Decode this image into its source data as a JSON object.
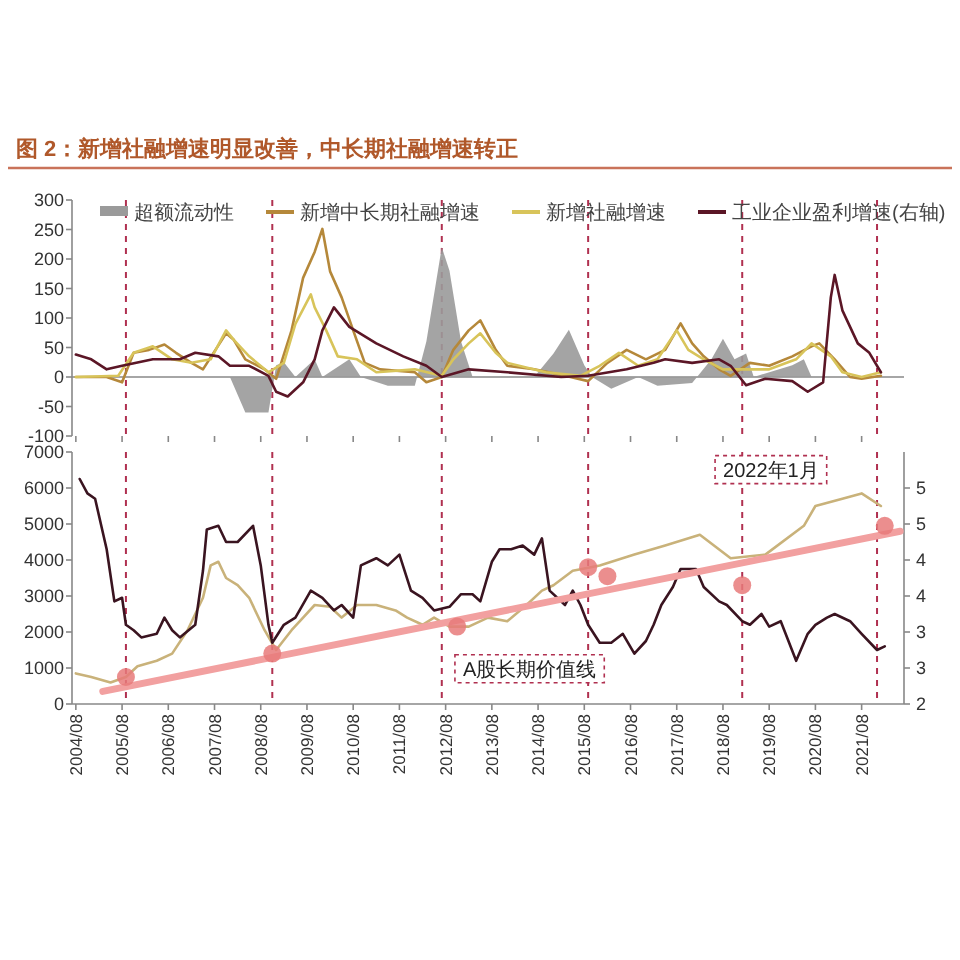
{
  "chart_data": [
    {
      "type": "line",
      "title": "图 2：新增社融增速明显改善，中长期社融增速转正",
      "xlim": [
        "2004-07",
        "2022-07"
      ],
      "xticks": [
        {
          "value": "2004-08",
          "label": null
        },
        {
          "value": "2005-08",
          "label": null
        },
        {
          "value": "2006-08",
          "label": null
        },
        {
          "value": "2007-08",
          "label": null
        },
        {
          "value": "2008-08",
          "label": null
        },
        {
          "value": "2009-08",
          "label": null
        },
        {
          "value": "2010-08",
          "label": null
        },
        {
          "value": "2011-08",
          "label": null
        },
        {
          "value": "2012-08",
          "label": null
        },
        {
          "value": "2013-08",
          "label": null
        },
        {
          "value": "2014-08",
          "label": null
        },
        {
          "value": "2015-08",
          "label": null
        },
        {
          "value": "2016-08",
          "label": null
        },
        {
          "value": "2017-08",
          "label": null
        },
        {
          "value": "2018-08",
          "label": null
        },
        {
          "value": "2019-08",
          "label": null
        },
        {
          "value": "2020-08",
          "label": null
        },
        {
          "value": "2021-08",
          "label": null
        }
      ],
      "ylim": [
        -100,
        300
      ],
      "yticks": [
        -100,
        -50,
        0,
        50,
        100,
        150,
        200,
        250,
        300
      ],
      "tick_labels": "y",
      "legend": "top",
      "ref_lines": [
        {
          "axis": "x",
          "value": "2005-09",
          "color": "#b03050",
          "line_style": "dashed"
        },
        {
          "axis": "x",
          "value": "2008-11",
          "color": "#b03050",
          "line_style": "dashed"
        },
        {
          "axis": "x",
          "value": "2012-07",
          "color": "#b03050",
          "line_style": "dashed"
        },
        {
          "axis": "x",
          "value": "2015-09",
          "color": "#b03050",
          "line_style": "dashed"
        },
        {
          "axis": "x",
          "value": "2019-01",
          "color": "#b03050",
          "line_style": "dashed"
        },
        {
          "axis": "x",
          "value": "2021-12",
          "color": "#b03050",
          "line_style": "dashed"
        }
      ],
      "series": [
        {
          "name": "超额流动性",
          "type": "area",
          "color": "#9a9a9a",
          "x": [
            "2004-08",
            "2007-12",
            "2008-04",
            "2008-10",
            "2008-12",
            "2009-02",
            "2009-05",
            "2009-10",
            "2009-12",
            "2010-07",
            "2010-10",
            "2011-05",
            "2011-12",
            "2012-03",
            "2012-06",
            "2012-07",
            "2012-09",
            "2012-12",
            "2013-03",
            "2014-07",
            "2014-12",
            "2015-04",
            "2015-08",
            "2015-10",
            "2016-03",
            "2016-10",
            "2017-03",
            "2017-12",
            "2018-05",
            "2018-08",
            "2018-11",
            "2019-02",
            "2019-04",
            "2020-02",
            "2020-05",
            "2020-07",
            "2022-01"
          ],
          "values": [
            0,
            0,
            -60,
            -60,
            20,
            25,
            0,
            30,
            0,
            30,
            0,
            -15,
            -15,
            60,
            180,
            220,
            180,
            60,
            0,
            0,
            40,
            80,
            20,
            0,
            -20,
            0,
            -15,
            -10,
            30,
            65,
            30,
            40,
            0,
            20,
            30,
            0,
            0
          ]
        },
        {
          "name": "新增中长期社融增速",
          "color": "#b5883a",
          "x": [
            "2004-08",
            "2005-04",
            "2005-08",
            "2005-11",
            "2006-03",
            "2006-07",
            "2006-10",
            "2007-02",
            "2007-05",
            "2007-11",
            "2008-01",
            "2008-04",
            "2008-09",
            "2008-12",
            "2009-04",
            "2009-07",
            "2009-10",
            "2009-12",
            "2010-02",
            "2010-05",
            "2010-08",
            "2010-11",
            "2011-03",
            "2011-12",
            "2012-03",
            "2012-07",
            "2012-10",
            "2013-02",
            "2013-05",
            "2013-09",
            "2013-12",
            "2014-07",
            "2015-03",
            "2015-09",
            "2016-02",
            "2016-07",
            "2016-12",
            "2017-05",
            "2017-09",
            "2017-12",
            "2018-03",
            "2018-07",
            "2018-10",
            "2019-03",
            "2019-08",
            "2020-02",
            "2020-07",
            "2020-09",
            "2021-01",
            "2021-05",
            "2021-08",
            "2022-01"
          ],
          "values": [
            0,
            0,
            -9,
            41,
            46,
            55,
            41,
            24,
            13,
            74,
            63,
            30,
            13,
            -3,
            79,
            168,
            212,
            251,
            179,
            135,
            79,
            24,
            13,
            8,
            -9,
            0,
            46,
            79,
            96,
            46,
            19,
            13,
            2,
            -7,
            24,
            46,
            30,
            46,
            91,
            57,
            35,
            13,
            2,
            24,
            19,
            35,
            52,
            57,
            30,
            0,
            -3,
            2
          ]
        },
        {
          "name": "新增社融增速",
          "color": "#d8c45a",
          "x": [
            "2004-08",
            "2005-07",
            "2005-11",
            "2006-04",
            "2006-09",
            "2007-02",
            "2007-07",
            "2007-11",
            "2008-01",
            "2008-05",
            "2008-10",
            "2009-02",
            "2009-05",
            "2009-09",
            "2009-10",
            "2010-01",
            "2010-04",
            "2010-09",
            "2011-02",
            "2011-12",
            "2012-07",
            "2012-10",
            "2013-02",
            "2013-05",
            "2013-09",
            "2013-12",
            "2014-10",
            "2015-07",
            "2015-12",
            "2016-05",
            "2016-10",
            "2017-03",
            "2017-08",
            "2017-11",
            "2018-03",
            "2018-08",
            "2019-03",
            "2019-08",
            "2020-03",
            "2020-07",
            "2020-12",
            "2021-03",
            "2021-08",
            "2022-01"
          ],
          "values": [
            0,
            2,
            41,
            52,
            30,
            24,
            30,
            79,
            63,
            35,
            8,
            24,
            90,
            140,
            118,
            79,
            35,
            30,
            8,
            13,
            2,
            30,
            57,
            74,
            41,
            24,
            8,
            2,
            19,
            41,
            19,
            30,
            79,
            46,
            30,
            13,
            13,
            13,
            30,
            57,
            35,
            8,
            0,
            8
          ]
        },
        {
          "name": "工业企业盈利增速(右轴)",
          "color": "#5b1626",
          "x": [
            "2004-08",
            "2004-12",
            "2005-04",
            "2005-08",
            "2006-04",
            "2006-11",
            "2007-03",
            "2007-09",
            "2007-12",
            "2008-05",
            "2008-10",
            "2008-12",
            "2009-03",
            "2009-07",
            "2009-10",
            "2009-12",
            "2010-03",
            "2010-07",
            "2011-02",
            "2011-09",
            "2012-03",
            "2012-07",
            "2013-02",
            "2013-12",
            "2015-02",
            "2015-09",
            "2016-07",
            "2017-02",
            "2017-05",
            "2017-12",
            "2018-07",
            "2018-10",
            "2019-02",
            "2019-07",
            "2020-02",
            "2020-06",
            "2020-10",
            "2020-12",
            "2021-01",
            "2021-03",
            "2021-07",
            "2021-10",
            "2022-01"
          ],
          "values": [
            38,
            30,
            13,
            19,
            30,
            30,
            41,
            35,
            19,
            19,
            2,
            -25,
            -33,
            -9,
            30,
            79,
            118,
            85,
            57,
            35,
            19,
            0,
            13,
            8,
            0,
            2,
            13,
            24,
            30,
            24,
            30,
            19,
            -14,
            -3,
            -7,
            -25,
            -9,
            135,
            173,
            113,
            57,
            41,
            8
          ]
        }
      ]
    },
    {
      "type": "line",
      "xlim": [
        "2004-07",
        "2022-07"
      ],
      "xticks": [
        {
          "value": "2004-08",
          "label": "2004/08"
        },
        {
          "value": "2005-08",
          "label": "2005/08"
        },
        {
          "value": "2006-08",
          "label": "2006/08"
        },
        {
          "value": "2007-08",
          "label": "2007/08"
        },
        {
          "value": "2008-08",
          "label": "2008/08"
        },
        {
          "value": "2009-08",
          "label": "2009/08"
        },
        {
          "value": "2010-08",
          "label": "2010/08"
        },
        {
          "value": "2011-08",
          "label": "2011/08"
        },
        {
          "value": "2012-08",
          "label": "2012/08"
        },
        {
          "value": "2013-08",
          "label": "2013/08"
        },
        {
          "value": "2014-08",
          "label": "2014/08"
        },
        {
          "value": "2015-08",
          "label": "2015/08"
        },
        {
          "value": "2016-08",
          "label": "2016/08"
        },
        {
          "value": "2017-08",
          "label": "2017/08"
        },
        {
          "value": "2018-08",
          "label": "2018/08"
        },
        {
          "value": "2019-08",
          "label": "2019/08"
        },
        {
          "value": "2020-08",
          "label": "2020/08"
        },
        {
          "value": "2021-08",
          "label": "2021/08"
        }
      ],
      "ylim": [
        0,
        7000
      ],
      "yticks": [
        0,
        1000,
        2000,
        3000,
        4000,
        5000,
        6000,
        7000
      ],
      "y2lim": [
        2,
        5.5
      ],
      "y2ticks": [
        2,
        {
          "value": 2.5,
          "label": "3"
        },
        3,
        {
          "value": 3.5,
          "label": "4"
        },
        4,
        {
          "value": 4.5,
          "label": "5"
        },
        5
      ],
      "annotations": [
        "A股长期价值线",
        "2022年1月"
      ],
      "ref_lines": [
        {
          "axis": "x",
          "value": "2005-09",
          "color": "#b03050",
          "line_style": "dashed"
        },
        {
          "axis": "x",
          "value": "2008-11",
          "color": "#b03050",
          "line_style": "dashed"
        },
        {
          "axis": "x",
          "value": "2012-07",
          "color": "#b03050",
          "line_style": "dashed"
        },
        {
          "axis": "x",
          "value": "2015-09",
          "color": "#b03050",
          "line_style": "dashed"
        },
        {
          "axis": "x",
          "value": "2019-01",
          "color": "#b03050",
          "line_style": "dashed"
        },
        {
          "axis": "x",
          "value": "2021-12",
          "color": "#b03050",
          "line_style": "dashed"
        }
      ],
      "series": [
        {
          "color": "#c9b27a",
          "x": [
            "2004-08",
            "2004-12",
            "2005-05",
            "2005-09",
            "2005-12",
            "2006-05",
            "2006-09",
            "2007-01",
            "2007-05",
            "2007-07",
            "2007-09",
            "2007-11",
            "2008-02",
            "2008-05",
            "2008-09",
            "2008-12",
            "2009-04",
            "2009-07",
            "2009-10",
            "2010-02",
            "2010-05",
            "2010-09",
            "2011-02",
            "2011-07",
            "2011-10",
            "2012-02",
            "2012-05",
            "2012-09",
            "2013-02",
            "2013-07",
            "2013-12",
            "2014-05",
            "2014-09",
            "2014-12",
            "2015-05",
            "2015-12",
            "2016-09",
            "2017-05",
            "2018-02",
            "2018-10",
            "2019-07",
            "2020-05",
            "2020-08",
            "2021-03",
            "2021-08",
            "2022-01"
          ],
          "values": [
            850,
            750,
            600,
            750,
            1050,
            1200,
            1400,
            2050,
            2950,
            3850,
            3950,
            3500,
            3300,
            2950,
            2050,
            1500,
            2050,
            2400,
            2750,
            2700,
            2400,
            2750,
            2750,
            2600,
            2400,
            2200,
            2400,
            2150,
            2150,
            2400,
            2300,
            2750,
            3150,
            3300,
            3700,
            3850,
            4150,
            4400,
            4700,
            4050,
            4150,
            4950,
            5500,
            5700,
            5850,
            5500
          ]
        },
        {
          "color": "#3a1420",
          "x": [
            "2004-09",
            "2004-11",
            "2005-01",
            "2005-04",
            "2005-06",
            "2005-08",
            "2005-09",
            "2005-11",
            "2006-01",
            "2006-05",
            "2006-07",
            "2006-09",
            "2006-11",
            "2007-03",
            "2007-05",
            "2007-06",
            "2007-09",
            "2007-11",
            "2008-02",
            "2008-06",
            "2008-08",
            "2008-10",
            "2008-11",
            "2009-02",
            "2009-05",
            "2009-09",
            "2009-12",
            "2010-03",
            "2010-05",
            "2010-08",
            "2010-10",
            "2011-02",
            "2011-05",
            "2011-08",
            "2011-11",
            "2012-02",
            "2012-05",
            "2012-09",
            "2012-12",
            "2013-03",
            "2013-05",
            "2013-08",
            "2013-10",
            "2014-01",
            "2014-04",
            "2014-07",
            "2014-09",
            "2014-11",
            "2015-03",
            "2015-05",
            "2015-07",
            "2015-09",
            "2015-12",
            "2016-03",
            "2016-06",
            "2016-09",
            "2016-12",
            "2017-02",
            "2017-04",
            "2017-07",
            "2017-09",
            "2018-01",
            "2018-03",
            "2018-07",
            "2018-09",
            "2019-01",
            "2019-03",
            "2019-06",
            "2019-08",
            "2019-11",
            "2020-01",
            "2020-03",
            "2020-06",
            "2020-08",
            "2020-11",
            "2021-01",
            "2021-05",
            "2021-08",
            "2021-12",
            "2022-02"
          ],
          "values": [
            6250,
            5850,
            5700,
            4300,
            2850,
            2950,
            2200,
            2050,
            1850,
            1950,
            2400,
            2050,
            1850,
            2200,
            3700,
            4850,
            4950,
            4500,
            4500,
            4950,
            3850,
            2200,
            1700,
            2200,
            2400,
            3150,
            2950,
            2600,
            2750,
            2400,
            3850,
            4050,
            3850,
            4150,
            3150,
            2950,
            2600,
            2700,
            3050,
            3050,
            2850,
            3950,
            4300,
            4300,
            4400,
            4150,
            4600,
            3150,
            2750,
            3150,
            2750,
            2200,
            1700,
            1700,
            1950,
            1400,
            1750,
            2200,
            2750,
            3250,
            3750,
            3750,
            3250,
            2850,
            2750,
            2300,
            2200,
            2500,
            2150,
            2300,
            1750,
            1200,
            1950,
            2200,
            2400,
            2500,
            2300,
            1950,
            1500,
            1600
          ]
        },
        {
          "color": "#f2a0a0",
          "x": [
            "2005-03",
            "2022-06"
          ],
          "values": [
            350,
            4800
          ]
        },
        {
          "type": "scatter",
          "marker": "circle",
          "color": "#e87a7a",
          "x": [
            "2005-09",
            "2008-11",
            "2012-11",
            "2015-09",
            "2016-02",
            "2019-01",
            "2022-02"
          ],
          "values": [
            750,
            1400,
            2150,
            3800,
            3550,
            3300,
            4950
          ]
        }
      ]
    }
  ]
}
